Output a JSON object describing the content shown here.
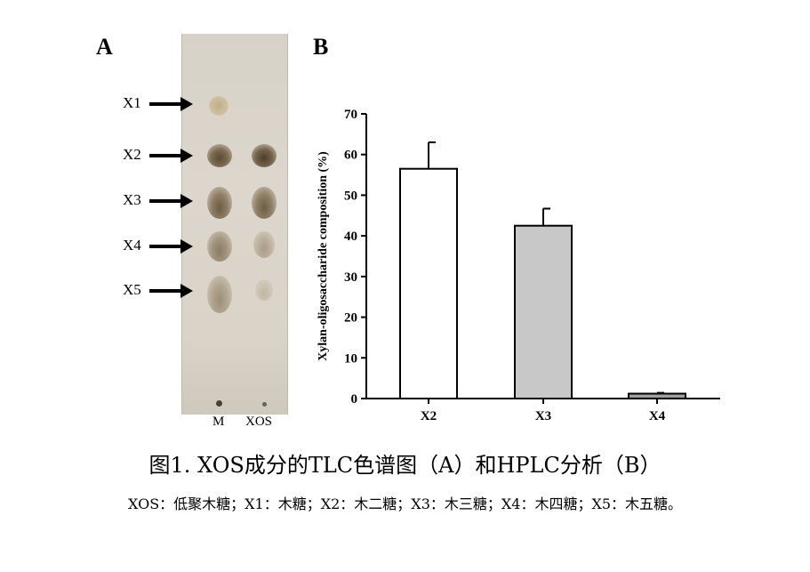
{
  "panel_a": {
    "letter": "A",
    "markers": [
      "X1",
      "X2",
      "X3",
      "X4",
      "X5"
    ],
    "lanes": [
      "M",
      "XOS"
    ]
  },
  "panel_b": {
    "letter": "B"
  },
  "chart_data": {
    "type": "bar",
    "categories": [
      "X2",
      "X3",
      "X4"
    ],
    "values": [
      56.5,
      42.5,
      1.2
    ],
    "errors": [
      6.5,
      4.2,
      0.2
    ],
    "bar_colors": [
      "#ffffff",
      "#c8c8c8",
      "#a0a0a0"
    ],
    "title": "",
    "xlabel": "",
    "ylabel": "Xylan-oligosaccharide composition (%)",
    "ylim": [
      0,
      70
    ],
    "yticks": [
      0,
      10,
      20,
      30,
      40,
      50,
      60,
      70
    ],
    "grid": false
  },
  "caption": "图1. XOS成分的TLC色谱图（A）和HPLC分析（B）",
  "legend_note": "XOS：低聚木糖；X1：木糖；X2：木二糖；X3：木三糖；X4：木四糖；X5：木五糖。"
}
